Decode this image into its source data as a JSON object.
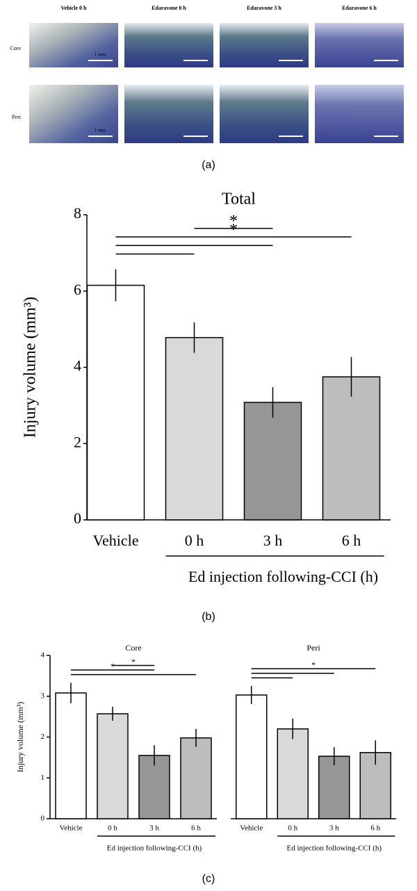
{
  "figure": {
    "panel_a": {
      "columns": [
        "Vehicle 0 h",
        "Edaravone 0 h",
        "Edaravone 3 h",
        "Edaravone 6 h"
      ],
      "rows": [
        "Core",
        "Peri"
      ],
      "scale_label": "1 mm"
    },
    "captions": [
      "(a)",
      "(b)",
      "(c)"
    ]
  },
  "chart_data": [
    {
      "type": "bar",
      "title": "Total",
      "ylabel": "Injury volume (mm³)",
      "xlabel": "Ed injection following-CCI (h)",
      "categories": [
        "Vehicle",
        "0 h",
        "3 h",
        "6 h"
      ],
      "values": [
        6.15,
        4.78,
        3.08,
        3.75
      ],
      "errors": [
        0.42,
        0.4,
        0.4,
        0.52
      ],
      "colors": [
        "#ffffff",
        "#d9d9d9",
        "#969696",
        "#bdbdbd"
      ],
      "ylim": [
        0,
        8
      ],
      "yticks": [
        0,
        2,
        4,
        6,
        8
      ],
      "significance": [
        {
          "from": 0,
          "to": 1
        },
        {
          "from": 0,
          "to": 2
        },
        {
          "from": 0,
          "to": 3,
          "label": "*"
        },
        {
          "from": 1,
          "to": 2,
          "label": "*"
        }
      ]
    },
    {
      "type": "bar",
      "title": "Core",
      "ylabel": "Injury volume (mm³)",
      "xlabel": "Ed injection following-CCI (h)",
      "categories": [
        "Vehicle",
        "0 h",
        "3 h",
        "6 h"
      ],
      "values": [
        3.08,
        2.57,
        1.55,
        1.98
      ],
      "errors": [
        0.25,
        0.17,
        0.25,
        0.22
      ],
      "colors": [
        "#ffffff",
        "#d9d9d9",
        "#969696",
        "#bdbdbd"
      ],
      "ylim": [
        0,
        4
      ],
      "yticks": [
        0,
        1,
        2,
        3,
        4
      ],
      "significance": [
        {
          "from": 0,
          "to": 3
        },
        {
          "from": 0,
          "to": 2,
          "label": "*"
        },
        {
          "from": 1,
          "to": 2,
          "label": "*"
        }
      ]
    },
    {
      "type": "bar",
      "title": "Peri",
      "xlabel": "Ed injection following-CCI (h)",
      "categories": [
        "Vehicle",
        "0 h",
        "3 h",
        "6 h"
      ],
      "values": [
        3.03,
        2.2,
        1.53,
        1.62
      ],
      "errors": [
        0.22,
        0.25,
        0.22,
        0.3
      ],
      "colors": [
        "#ffffff",
        "#d9d9d9",
        "#969696",
        "#bdbdbd"
      ],
      "significance": [
        {
          "from": 0,
          "to": 1
        },
        {
          "from": 0,
          "to": 2
        },
        {
          "from": 0,
          "to": 3,
          "label": "*"
        }
      ]
    }
  ]
}
